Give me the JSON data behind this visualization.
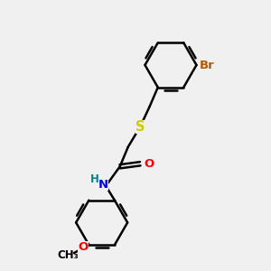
{
  "bg_color": "#f0f0f0",
  "bond_color": "#000000",
  "bond_width": 1.8,
  "atom_colors": {
    "Br": "#b35a00",
    "S": "#cccc00",
    "N": "#0000ee",
    "O": "#ff0000",
    "H": "#008888"
  },
  "font_size": 9.5,
  "fig_size": [
    3.0,
    3.0
  ],
  "dpi": 100
}
